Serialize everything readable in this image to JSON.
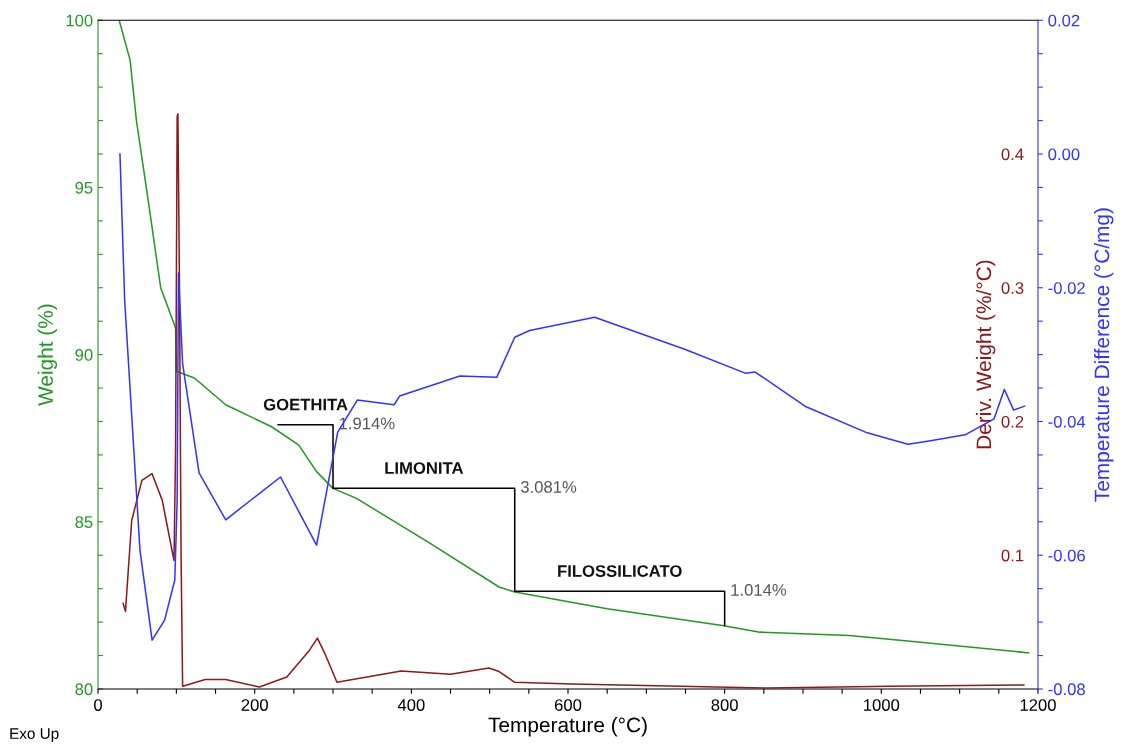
{
  "chart_data": {
    "type": "line",
    "xlabel": "Temperature (°C)",
    "ylabel": "Weight (%)",
    "y2label": "Deriv. Weight (%/°C)",
    "y3label": "Temperature Difference (°C/mg)",
    "xlim": [
      0,
      1200
    ],
    "xticks": [
      0,
      {
        "value": 50,
        "label": null
      },
      {
        "value": 100,
        "label": null
      },
      {
        "value": 150,
        "label": null
      },
      200,
      {
        "value": 250,
        "label": null
      },
      {
        "value": 300,
        "label": null
      },
      {
        "value": 350,
        "label": null
      },
      400,
      {
        "value": 450,
        "label": null
      },
      {
        "value": 500,
        "label": null
      },
      {
        "value": 550,
        "label": null
      },
      600,
      {
        "value": 650,
        "label": null
      },
      {
        "value": 700,
        "label": null
      },
      {
        "value": 750,
        "label": null
      },
      800,
      {
        "value": 850,
        "label": null
      },
      {
        "value": 900,
        "label": null
      },
      {
        "value": 950,
        "label": null
      },
      1000,
      {
        "value": 1050,
        "label": null
      },
      {
        "value": 1100,
        "label": null
      },
      {
        "value": 1150,
        "label": null
      },
      1200
    ],
    "ylim": [
      80,
      100
    ],
    "yticks": [
      80,
      {
        "value": 81,
        "label": null
      },
      {
        "value": 82,
        "label": null
      },
      {
        "value": 83,
        "label": null
      },
      {
        "value": 84,
        "label": null
      },
      85,
      {
        "value": 86,
        "label": null
      },
      {
        "value": 87,
        "label": null
      },
      {
        "value": 88,
        "label": null
      },
      {
        "value": 89,
        "label": null
      },
      90,
      {
        "value": 91,
        "label": null
      },
      {
        "value": 92,
        "label": null
      },
      {
        "value": 93,
        "label": null
      },
      {
        "value": 94,
        "label": null
      },
      95,
      {
        "value": 96,
        "label": null
      },
      {
        "value": 97,
        "label": null
      },
      {
        "value": 98,
        "label": null
      },
      {
        "value": 99,
        "label": null
      },
      100
    ],
    "y2lim": [
      0,
      0.5
    ],
    "y2ticks": [
      0.1,
      0.2,
      0.3,
      0.4
    ],
    "y3lim": [
      -0.08,
      0.02
    ],
    "y3ticks": [
      {
        "value": -0.08,
        "label": "-0.08"
      },
      {
        "value": -0.075,
        "label": null
      },
      {
        "value": -0.07,
        "label": null
      },
      {
        "value": -0.065,
        "label": null
      },
      {
        "value": -0.06,
        "label": "-0.06"
      },
      {
        "value": -0.055,
        "label": null
      },
      {
        "value": -0.05,
        "label": null
      },
      {
        "value": -0.045,
        "label": null
      },
      {
        "value": -0.04,
        "label": "-0.04"
      },
      {
        "value": -0.035,
        "label": null
      },
      {
        "value": -0.03,
        "label": null
      },
      {
        "value": -0.025,
        "label": null
      },
      {
        "value": -0.02,
        "label": "-0.02"
      },
      {
        "value": -0.015,
        "label": null
      },
      {
        "value": -0.01,
        "label": null
      },
      {
        "value": -0.005,
        "label": null
      },
      {
        "value": 0,
        "label": "0.00"
      },
      {
        "value": 0.005,
        "label": null
      },
      {
        "value": 0.01,
        "label": null
      },
      {
        "value": 0.015,
        "label": null
      },
      {
        "value": 0.02,
        "label": "0.02"
      }
    ],
    "grid": false,
    "marker": "none",
    "line_style": "solid",
    "series": [
      {
        "color": "#229922",
        "x": [
          27,
          41,
          49,
          66,
          80,
          99,
          100,
          123,
          163,
          221,
          256,
          279,
          300,
          330,
          421,
          512,
          532,
          650,
          797,
          845,
          959,
          1037,
          1188
        ],
        "values": [
          100,
          98.8,
          97.0,
          94.3,
          92.0,
          90.8,
          89.5,
          89.3,
          88.5,
          87.85,
          87.3,
          86.5,
          86.0,
          85.7,
          84.4,
          83.05,
          82.9,
          82.4,
          81.9,
          81.7,
          81.6,
          81.43,
          81.08
        ]
      },
      {
        "color": "#8b1a1a",
        "axis": "y2",
        "x": [
          32,
          35,
          43,
          56,
          69,
          82,
          92,
          97,
          99,
          101,
          102,
          104,
          106,
          108,
          137,
          163,
          206,
          241,
          270,
          280,
          290,
          305,
          387,
          450,
          499,
          512,
          532,
          605,
          855,
          1011,
          1182
        ],
        "values": [
          0.064,
          0.058,
          0.126,
          0.156,
          0.161,
          0.141,
          0.111,
          0.096,
          0.179,
          0.428,
          0.43,
          0.3,
          0.1,
          0.002,
          0.007,
          0.007,
          0.0015,
          0.009,
          0.029,
          0.038,
          0.026,
          0.005,
          0.0135,
          0.011,
          0.0157,
          0.013,
          0.005,
          0.0037,
          0.0007,
          0.002,
          0.003
        ]
      },
      {
        "color": "#3333ff",
        "axis": "y3",
        "x": [
          28,
          34,
          53.5,
          69,
          85,
          98,
          101,
          102.7,
          108,
          129,
          163,
          233,
          279,
          306,
          331,
          378,
          385,
          462,
          509,
          532,
          551,
          634,
          749,
          827,
          839,
          904,
          982,
          1034,
          1061,
          1107,
          1144,
          1157,
          1169,
          1183
        ],
        "values": [
          0.0,
          -0.0219,
          -0.0592,
          -0.0727,
          -0.0697,
          -0.0637,
          -0.0518,
          -0.0178,
          -0.0314,
          -0.0477,
          -0.0547,
          -0.0483,
          -0.0585,
          -0.0416,
          -0.0368,
          -0.0375,
          -0.0362,
          -0.0332,
          -0.0334,
          -0.0274,
          -0.0264,
          -0.0244,
          -0.0292,
          -0.0328,
          -0.0326,
          -0.0378,
          -0.0417,
          -0.0434,
          -0.0429,
          -0.042,
          -0.0396,
          -0.0352,
          -0.0383,
          -0.0377
        ]
      },
      {
        "color": "#000000",
        "x": [
          230,
          300,
          300
        ],
        "values": [
          87.9,
          87.9,
          86.0
        ]
      },
      {
        "color": "#000000",
        "x": [
          300,
          532,
          532
        ],
        "values": [
          86.0,
          86.0,
          82.92
        ]
      },
      {
        "color": "#000000",
        "x": [
          532,
          800,
          800
        ],
        "values": [
          82.92,
          82.92,
          81.9
        ]
      }
    ],
    "annotations": [
      "GOETHITA",
      "1.914%",
      "LIMONITA",
      "3.081%",
      "FILOSSILICATO",
      "1.014%",
      "Exo Up"
    ]
  }
}
